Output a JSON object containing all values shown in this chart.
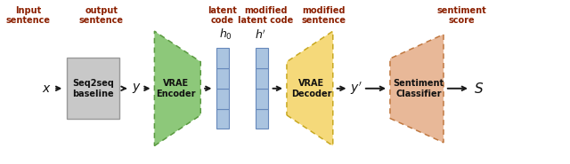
{
  "bg_color": "#ffffff",
  "label_color": "#8B2000",
  "arrow_color": "#1a1a1a",
  "box_gray_fill": "#c8c8c8",
  "box_gray_edge": "#999999",
  "vrae_encoder_fill": "#8DC87A",
  "vrae_encoder_edge": "#5a9a40",
  "latent_fill": "#aac4e0",
  "latent_edge": "#6688bb",
  "vrae_decoder_fill": "#F5D97A",
  "vrae_decoder_edge": "#c8a820",
  "sentiment_fill": "#E8B898",
  "sentiment_edge": "#c07840",
  "labels": {
    "input_sentence": "Input\nsentence",
    "output_sentence": "output\nsentence",
    "latent_code": "latent\ncode",
    "modified_latent_code": "modified\nlatent code",
    "modified_sentence": "modified\nsentence",
    "sentiment_score": "sentiment\nscore"
  },
  "node_labels": {
    "seq2seq": "Seq2seq\nbaseline",
    "vrae_encoder": "VRAE\nEncoder",
    "vrae_decoder": "VRAE\nDecoder",
    "sentiment_classifier": "Sentiment\nClassifier"
  }
}
